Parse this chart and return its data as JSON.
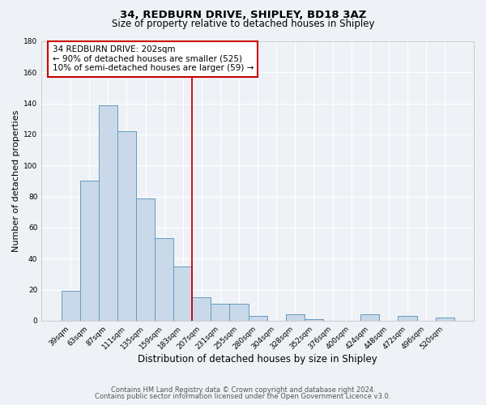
{
  "title": "34, REDBURN DRIVE, SHIPLEY, BD18 3AZ",
  "subtitle": "Size of property relative to detached houses in Shipley",
  "xlabel": "Distribution of detached houses by size in Shipley",
  "ylabel": "Number of detached properties",
  "bar_labels": [
    "39sqm",
    "63sqm",
    "87sqm",
    "111sqm",
    "135sqm",
    "159sqm",
    "183sqm",
    "207sqm",
    "231sqm",
    "255sqm",
    "280sqm",
    "304sqm",
    "328sqm",
    "352sqm",
    "376sqm",
    "400sqm",
    "424sqm",
    "448sqm",
    "472sqm",
    "496sqm",
    "520sqm"
  ],
  "bar_heights": [
    19,
    90,
    139,
    122,
    79,
    53,
    35,
    15,
    11,
    11,
    3,
    0,
    4,
    1,
    0,
    0,
    4,
    0,
    3,
    0,
    2
  ],
  "bar_color": "#c9d9ea",
  "bar_edge_color": "#6699bb",
  "vline_color": "#cc0000",
  "annotation_title": "34 REDBURN DRIVE: 202sqm",
  "annotation_line1": "← 90% of detached houses are smaller (525)",
  "annotation_line2": "10% of semi-detached houses are larger (59) →",
  "annotation_box_color": "#cc0000",
  "ylim": [
    0,
    180
  ],
  "yticks": [
    0,
    20,
    40,
    60,
    80,
    100,
    120,
    140,
    160,
    180
  ],
  "footer1": "Contains HM Land Registry data © Crown copyright and database right 2024.",
  "footer2": "Contains public sector information licensed under the Open Government Licence v3.0.",
  "bg_color": "#eef2f7",
  "plot_bg_color": "#eef2f7",
  "grid_color": "#ffffff",
  "title_fontsize": 9.5,
  "subtitle_fontsize": 8.5,
  "xlabel_fontsize": 8.5,
  "ylabel_fontsize": 8.0,
  "tick_fontsize": 6.5,
  "footer_fontsize": 6.0,
  "ann_fontsize": 7.5
}
